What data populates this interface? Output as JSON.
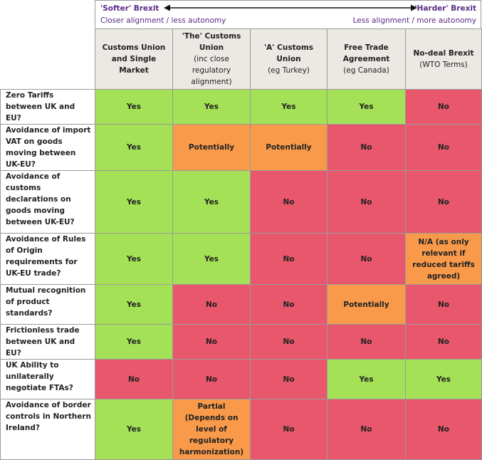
{
  "spectrum": {
    "left_title": "'Softer' Brexit",
    "left_sub": "Closer alignment / less autonomy",
    "right_title": "'Harder' Brexit",
    "right_sub": "Less alignment / more autonomy",
    "arrow_icon": "double-arrow-icon"
  },
  "columns": [
    {
      "title": "Customs Union and Single Market",
      "sub": ""
    },
    {
      "title": "'The' Customs Union",
      "sub": "(inc close regulatory alignment)"
    },
    {
      "title": "'A' Customs Union",
      "sub": "(eg Turkey)"
    },
    {
      "title": "Free Trade Agreement",
      "sub": "(eg Canada)"
    },
    {
      "title": "No-deal Brexit",
      "sub": "(WTO Terms)"
    }
  ],
  "rows": [
    {
      "label": "Zero Tariffs between UK and EU?",
      "cells": [
        {
          "text": "Yes",
          "status": "yes"
        },
        {
          "text": "Yes",
          "status": "yes"
        },
        {
          "text": "Yes",
          "status": "yes"
        },
        {
          "text": "Yes",
          "status": "yes"
        },
        {
          "text": "No",
          "status": "no"
        }
      ]
    },
    {
      "label": "Avoidance of import VAT on goods moving between UK-EU?",
      "cells": [
        {
          "text": "Yes",
          "status": "yes"
        },
        {
          "text": "Potentially",
          "status": "maybe"
        },
        {
          "text": "Potentially",
          "status": "maybe"
        },
        {
          "text": "No",
          "status": "no"
        },
        {
          "text": "No",
          "status": "no"
        }
      ]
    },
    {
      "label": "Avoidance of customs declarations on goods moving between UK-EU?",
      "cells": [
        {
          "text": "Yes",
          "status": "yes"
        },
        {
          "text": "Yes",
          "status": "yes"
        },
        {
          "text": "No",
          "status": "no"
        },
        {
          "text": "No",
          "status": "no"
        },
        {
          "text": "No",
          "status": "no"
        }
      ]
    },
    {
      "label": "Avoidance of Rules of Origin requirements for UK-EU trade?",
      "cells": [
        {
          "text": "Yes",
          "status": "yes"
        },
        {
          "text": "Yes",
          "status": "yes"
        },
        {
          "text": "No",
          "status": "no"
        },
        {
          "text": "No",
          "status": "no"
        },
        {
          "text": "N/A (as only relevant if reduced tariffs agreed)",
          "status": "maybe"
        }
      ]
    },
    {
      "label": "Mutual recognition of product standards?",
      "cells": [
        {
          "text": "Yes",
          "status": "yes"
        },
        {
          "text": "No",
          "status": "no"
        },
        {
          "text": "No",
          "status": "no"
        },
        {
          "text": "Potentially",
          "status": "maybe"
        },
        {
          "text": "No",
          "status": "no"
        }
      ]
    },
    {
      "label": "Frictionless trade between UK and EU?",
      "cells": [
        {
          "text": "Yes",
          "status": "yes"
        },
        {
          "text": "No",
          "status": "no"
        },
        {
          "text": "No",
          "status": "no"
        },
        {
          "text": "No",
          "status": "no"
        },
        {
          "text": "No",
          "status": "no"
        }
      ]
    },
    {
      "label": "UK Ability to unilaterally negotiate FTAs?",
      "cells": [
        {
          "text": "No",
          "status": "no"
        },
        {
          "text": "No",
          "status": "no"
        },
        {
          "text": "No",
          "status": "no"
        },
        {
          "text": "Yes",
          "status": "yes"
        },
        {
          "text": "Yes",
          "status": "yes"
        }
      ]
    },
    {
      "label": "Avoidance of border controls in Northern Ireland?",
      "cells": [
        {
          "text": "Yes",
          "status": "yes"
        },
        {
          "text": "Partial",
          "sub": "(Depends on level of regulatory harmonization)",
          "status": "maybe"
        },
        {
          "text": "No",
          "status": "no"
        },
        {
          "text": "No",
          "status": "no"
        },
        {
          "text": "No",
          "status": "no"
        }
      ]
    }
  ],
  "colors": {
    "yes": "#a5e157",
    "no": "#e8576b",
    "maybe": "#f89a4a",
    "header_bg": "#ece8e3",
    "accent": "#5b2a86"
  }
}
